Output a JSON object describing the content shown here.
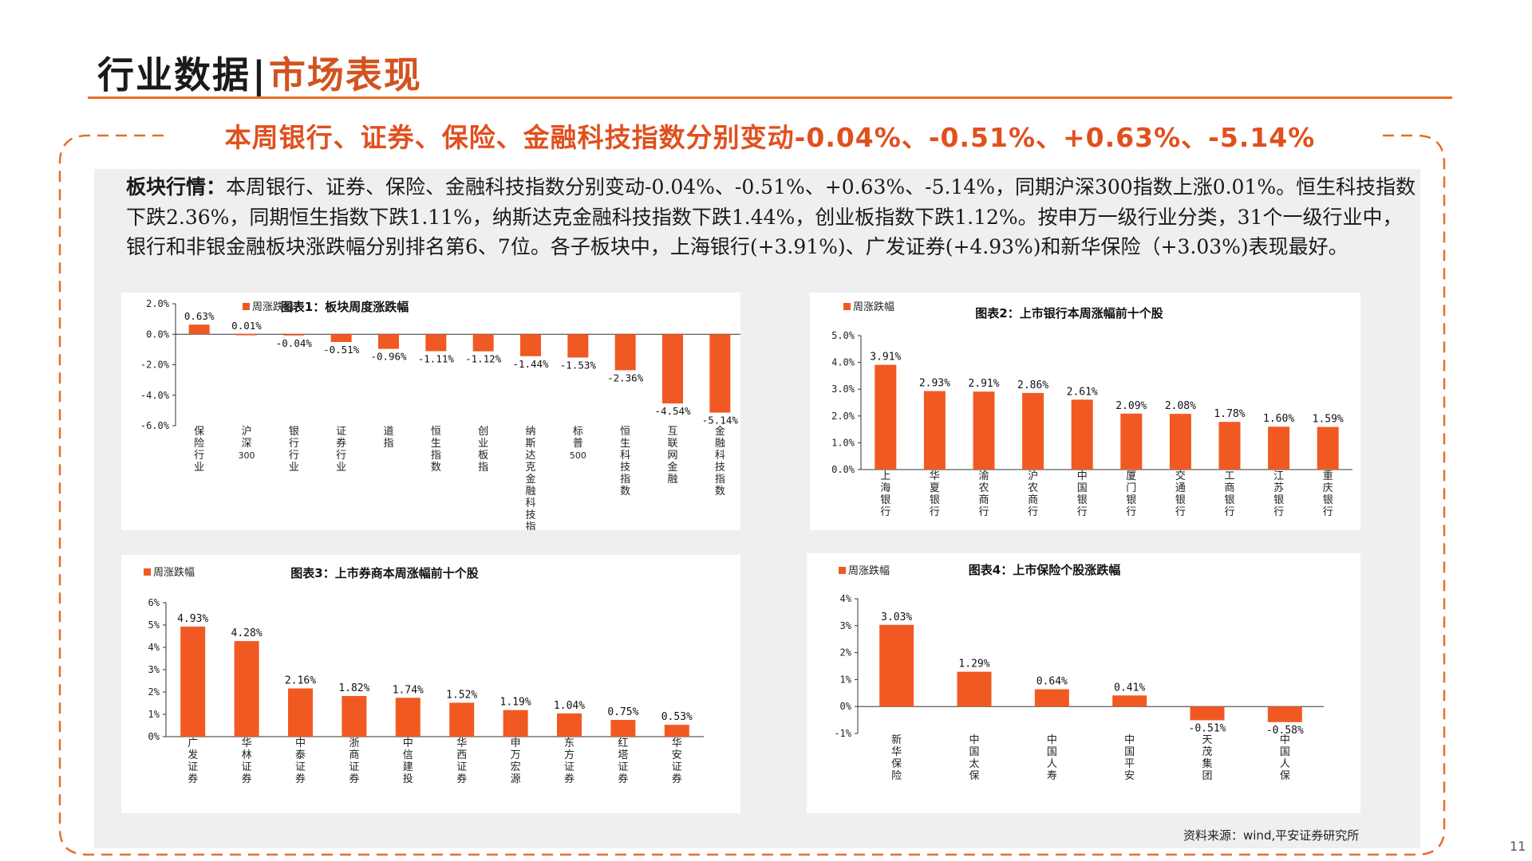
{
  "header": {
    "title": "行业数据",
    "separator": "|",
    "subtitle": "市场表现"
  },
  "headline": "本周银行、证券、保险、金融科技指数分别变动-0.04%、-0.51%、+0.63%、-5.14%",
  "summary": {
    "lead": "板块行情：",
    "text": "本周银行、证券、保险、金融科技指数分别变动-0.04%、-0.51%、+0.63%、-5.14%，同期沪深300指数上涨0.01%。恒生科技指数下跌2.36%，同期恒生指数下跌1.11%，纳斯达克金融科技指数下跌1.44%，创业板指数下跌1.12%。按申万一级行业分类，31个一级行业中，银行和非银金融板块涨跌幅分别排名第6、7位。各子板块中，上海银行(+3.91%)、广发证券(+4.93%)和新华保险（+3.03%)表现最好。"
  },
  "source": "资料来源：wind,平安证券研究所",
  "page_number": "11",
  "colors": {
    "accent": "#e0501e",
    "bar": "#f05a22",
    "rule": "#e76d2b",
    "panel": "#efefef"
  },
  "chart_data": [
    {
      "id": "chart1",
      "type": "bar",
      "title": "图表1：板块周度涨跌幅",
      "legend": "周涨跌幅",
      "categories": [
        "保险行业",
        "沪深300",
        "银行行业",
        "证券行业",
        "道指",
        "恒生指数",
        "创业板指",
        "纳斯达克金融科技指数",
        "标普500",
        "恒生科技指数",
        "互联网金融",
        "金融科技指数"
      ],
      "values": [
        0.63,
        0.01,
        -0.04,
        -0.51,
        -0.96,
        -1.11,
        -1.12,
        -1.44,
        -1.53,
        -2.36,
        -4.54,
        -5.14
      ],
      "labels": [
        "0.63%",
        "0.01%",
        "-0.04%",
        "-0.51%",
        "-0.96%",
        "-1.11%",
        "-1.12%",
        "-1.44%",
        "-1.53%",
        "-2.36%",
        "-4.54%",
        "-5.14%"
      ],
      "yticks": [
        "2.0%",
        "0.0%",
        "-2.0%",
        "-4.0%",
        "-6.0%"
      ],
      "ylim": [
        -6,
        2
      ]
    },
    {
      "id": "chart2",
      "type": "bar",
      "title": "图表2：上市银行本周涨幅前十个股",
      "legend": "周涨跌幅",
      "categories": [
        "上海银行",
        "华夏银行",
        "渝农商行",
        "沪农商行",
        "中国银行",
        "厦门银行",
        "交通银行",
        "工商银行",
        "江苏银行",
        "重庆银行"
      ],
      "values": [
        3.91,
        2.93,
        2.91,
        2.86,
        2.61,
        2.09,
        2.08,
        1.78,
        1.6,
        1.59
      ],
      "labels": [
        "3.91%",
        "2.93%",
        "2.91%",
        "2.86%",
        "2.61%",
        "2.09%",
        "2.08%",
        "1.78%",
        "1.60%",
        "1.59%"
      ],
      "yticks": [
        "5.0%",
        "4.0%",
        "3.0%",
        "2.0%",
        "1.0%",
        "0.0%"
      ],
      "ylim": [
        0,
        5
      ]
    },
    {
      "id": "chart3",
      "type": "bar",
      "title": "图表3：上市券商本周涨幅前十个股",
      "legend": "周涨跌幅",
      "categories": [
        "广发证券",
        "华林证券",
        "中泰证券",
        "浙商证券",
        "中信建投",
        "华西证券",
        "申万宏源",
        "东方证券",
        "红塔证券",
        "华安证券"
      ],
      "values": [
        4.93,
        4.28,
        2.16,
        1.82,
        1.74,
        1.52,
        1.19,
        1.04,
        0.75,
        0.53
      ],
      "labels": [
        "4.93%",
        "4.28%",
        "2.16%",
        "1.82%",
        "1.74%",
        "1.52%",
        "1.19%",
        "1.04%",
        "0.75%",
        "0.53%"
      ],
      "yticks": [
        "6%",
        "5%",
        "4%",
        "3%",
        "2%",
        "1%",
        "0%"
      ],
      "ylim": [
        0,
        6
      ]
    },
    {
      "id": "chart4",
      "type": "bar",
      "title": "图表4：上市保险个股涨跌幅",
      "legend": "周涨跌幅",
      "categories": [
        "新华保险",
        "中国太保",
        "中国人寿",
        "中国平安",
        "天茂集团",
        "中国人保"
      ],
      "values": [
        3.03,
        1.29,
        0.64,
        0.41,
        -0.51,
        -0.58
      ],
      "labels": [
        "3.03%",
        "1.29%",
        "0.64%",
        "0.41%",
        "-0.51%",
        "-0.58%"
      ],
      "yticks": [
        "4%",
        "3%",
        "2%",
        "1%",
        "0%",
        "-1%"
      ],
      "ylim": [
        -1,
        4
      ]
    }
  ]
}
